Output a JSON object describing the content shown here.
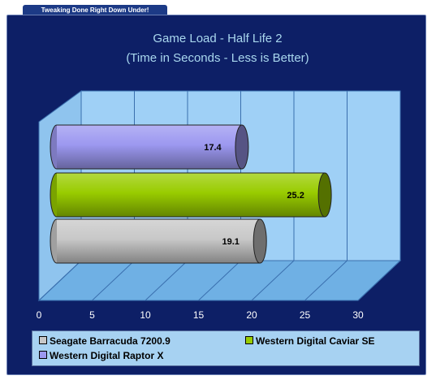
{
  "banner": {
    "text": "Tweaking Done Right Down Under!"
  },
  "chart_data": {
    "type": "bar",
    "orientation": "horizontal",
    "style": "3d-cylinder",
    "title": "Game Load - Half Life 2",
    "subtitle": "(Time in Seconds - Less is Better)",
    "xlim": [
      0,
      30
    ],
    "xticks": [
      "0",
      "5",
      "10",
      "15",
      "20",
      "25",
      "30"
    ],
    "grid": true,
    "legend_position": "bottom",
    "series": [
      {
        "name": "Western Digital Raptor X",
        "value": 17.4,
        "label": "17.4",
        "color": "#9c98f0"
      },
      {
        "name": "Western Digital Caviar SE",
        "value": 25.2,
        "label": "25.2",
        "color": "#99cc00"
      },
      {
        "name": "Seagate Barracuda 7200.9",
        "value": 19.1,
        "label": "19.1",
        "color": "#c8c8c8"
      }
    ]
  },
  "legend": {
    "items": [
      {
        "label": "Seagate Barracuda 7200.9",
        "color": "#c8c8c8"
      },
      {
        "label": "Western Digital Caviar SE",
        "color": "#99cc00"
      },
      {
        "label": "Western Digital Raptor X",
        "color": "#9c98f0"
      }
    ]
  }
}
